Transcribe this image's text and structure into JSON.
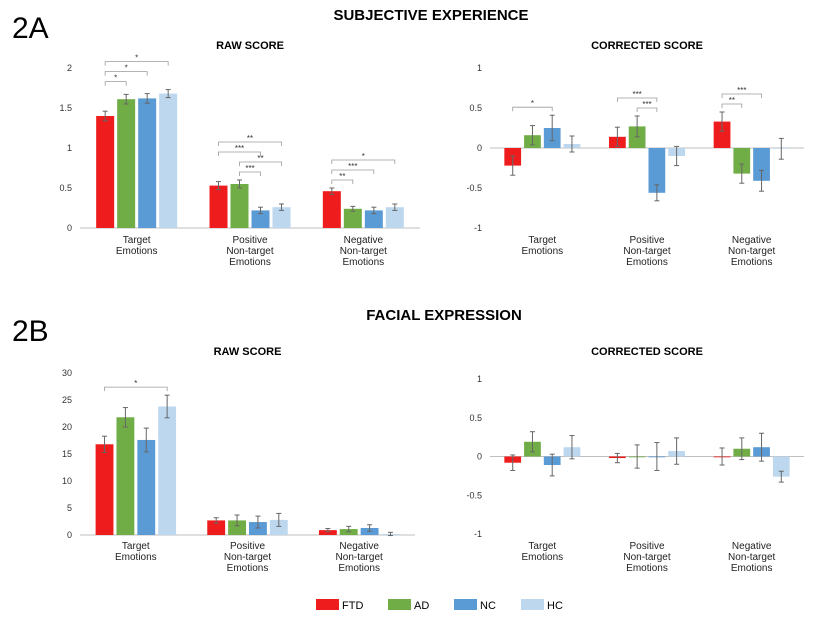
{
  "figure": {
    "panel_2a_label": "2A",
    "panel_2a_title": "SUBJECTIVE EXPERIENCE",
    "panel_2b_label": "2B",
    "panel_2b_title": "FACIAL EXPRESSION"
  },
  "colors": {
    "FTD": "#ee1c1c",
    "AD": "#71ad47",
    "NC": "#5b9bd5",
    "HC": "#bdd7ee"
  },
  "legend": [
    {
      "key": "FTD",
      "label": "FTD"
    },
    {
      "key": "AD",
      "label": "AD"
    },
    {
      "key": "NC",
      "label": "NC"
    },
    {
      "key": "HC",
      "label": "HC"
    }
  ],
  "chart_data": [
    {
      "id": "2a-raw",
      "type": "bar",
      "title": "RAW SCORE",
      "categories": [
        "Target\nEmotions",
        "Positive\nNon-target\nEmotions",
        "Negative\nNon-target\nEmotions"
      ],
      "series": [
        {
          "name": "FTD",
          "values": [
            1.4,
            0.53,
            0.46
          ],
          "errors": [
            0.06,
            0.05,
            0.04
          ]
        },
        {
          "name": "AD",
          "values": [
            1.61,
            0.55,
            0.24
          ],
          "errors": [
            0.06,
            0.05,
            0.03
          ]
        },
        {
          "name": "NC",
          "values": [
            1.62,
            0.22,
            0.22
          ],
          "errors": [
            0.06,
            0.04,
            0.04
          ]
        },
        {
          "name": "HC",
          "values": [
            1.68,
            0.26,
            0.26
          ],
          "errors": [
            0.05,
            0.04,
            0.04
          ]
        }
      ],
      "ylim": [
        0,
        2
      ],
      "yticks": [
        0,
        0.5,
        1,
        1.5,
        2
      ],
      "ytick_labels": [
        "0",
        "0.5",
        "1",
        "1.5",
        "2"
      ],
      "show_zero_line": false,
      "significance": [
        {
          "cat": 0,
          "from": 0,
          "to": 1,
          "label": "*",
          "level": 0
        },
        {
          "cat": 0,
          "from": 0,
          "to": 2,
          "label": "*",
          "level": 1
        },
        {
          "cat": 0,
          "from": 0,
          "to": 3,
          "label": "*",
          "level": 2
        },
        {
          "cat": 1,
          "from": 1,
          "to": 2,
          "label": "***",
          "level": 0
        },
        {
          "cat": 1,
          "from": 1,
          "to": 3,
          "label": "**",
          "level": 1
        },
        {
          "cat": 1,
          "from": 0,
          "to": 2,
          "label": "***",
          "level": 2
        },
        {
          "cat": 1,
          "from": 0,
          "to": 3,
          "label": "**",
          "level": 3
        },
        {
          "cat": 2,
          "from": 0,
          "to": 1,
          "label": "**",
          "level": 0
        },
        {
          "cat": 2,
          "from": 0,
          "to": 2,
          "label": "***",
          "level": 1
        },
        {
          "cat": 2,
          "from": 0,
          "to": 3,
          "label": "*",
          "level": 2
        }
      ]
    },
    {
      "id": "2a-corrected",
      "type": "bar",
      "title": "CORRECTED SCORE",
      "categories": [
        "Target\nEmotions",
        "Positive\nNon-target\nEmotions",
        "Negative\nNon-target\nEmotions"
      ],
      "series": [
        {
          "name": "FTD",
          "values": [
            -0.22,
            0.14,
            0.33
          ],
          "errors": [
            0.12,
            0.12,
            0.12
          ]
        },
        {
          "name": "AD",
          "values": [
            0.16,
            0.27,
            -0.32
          ],
          "errors": [
            0.12,
            0.13,
            0.12
          ]
        },
        {
          "name": "NC",
          "values": [
            0.25,
            -0.56,
            -0.41
          ],
          "errors": [
            0.16,
            0.1,
            0.13
          ]
        },
        {
          "name": "HC",
          "values": [
            0.05,
            -0.1,
            -0.01
          ],
          "errors": [
            0.1,
            0.12,
            0.13
          ]
        }
      ],
      "ylim": [
        -1,
        1
      ],
      "yticks": [
        -1,
        -0.5,
        0,
        0.5,
        1
      ],
      "ytick_labels": [
        "-1",
        "-0.5",
        "0",
        "0.5",
        "1"
      ],
      "show_zero_line": true,
      "significance": [
        {
          "cat": 0,
          "from": 0,
          "to": 2,
          "label": "*",
          "level": 0
        },
        {
          "cat": 1,
          "from": 1,
          "to": 2,
          "label": "***",
          "level": 0
        },
        {
          "cat": 1,
          "from": 0,
          "to": 2,
          "label": "***",
          "level": 1
        },
        {
          "cat": 2,
          "from": 0,
          "to": 1,
          "label": "**",
          "level": 0
        },
        {
          "cat": 2,
          "from": 0,
          "to": 2,
          "label": "***",
          "level": 1
        }
      ]
    },
    {
      "id": "2b-raw",
      "type": "bar",
      "title": "RAW SCORE",
      "categories": [
        "Target\nEmotions",
        "Positive\nNon-target\nEmotions",
        "Negative\nNon-target\nEmotions"
      ],
      "series": [
        {
          "name": "FTD",
          "values": [
            16.8,
            2.7,
            0.9
          ],
          "errors": [
            1.5,
            0.5,
            0.3
          ]
        },
        {
          "name": "AD",
          "values": [
            21.8,
            2.7,
            1.1
          ],
          "errors": [
            1.8,
            1.0,
            0.5
          ]
        },
        {
          "name": "NC",
          "values": [
            17.6,
            2.4,
            1.3
          ],
          "errors": [
            2.2,
            1.1,
            0.6
          ]
        },
        {
          "name": "HC",
          "values": [
            23.8,
            2.8,
            0.2
          ],
          "errors": [
            2.1,
            1.2,
            0.3
          ]
        }
      ],
      "ylim": [
        0,
        30
      ],
      "yticks": [
        0,
        5,
        10,
        15,
        20,
        25,
        30
      ],
      "ytick_labels": [
        "0",
        "5",
        "10",
        "15",
        "20",
        "25",
        "30"
      ],
      "show_zero_line": false,
      "significance": [
        {
          "cat": 0,
          "from": 0,
          "to": 3,
          "label": "*",
          "level": 0
        }
      ]
    },
    {
      "id": "2b-corrected",
      "type": "bar",
      "title": "CORRECTED SCORE",
      "categories": [
        "Target\nEmotions",
        "Positive\nNon-target\nEmotions",
        "Negative\nNon-target\nEmotions"
      ],
      "series": [
        {
          "name": "FTD",
          "values": [
            -0.08,
            -0.02,
            0.0
          ],
          "errors": [
            0.1,
            0.06,
            0.11
          ]
        },
        {
          "name": "AD",
          "values": [
            0.19,
            0.0,
            0.1
          ],
          "errors": [
            0.13,
            0.15,
            0.14
          ]
        },
        {
          "name": "NC",
          "values": [
            -0.11,
            0.0,
            0.12
          ],
          "errors": [
            0.14,
            0.18,
            0.18
          ]
        },
        {
          "name": "HC",
          "values": [
            0.12,
            0.07,
            -0.26
          ],
          "errors": [
            0.15,
            0.17,
            0.07
          ]
        }
      ],
      "ylim": [
        -1,
        1
      ],
      "yticks": [
        -1,
        -0.5,
        0,
        0.5,
        1
      ],
      "ytick_labels": [
        "-1",
        "-0.5",
        "0",
        "0.5",
        "1"
      ],
      "show_zero_line": true,
      "significance": []
    }
  ]
}
